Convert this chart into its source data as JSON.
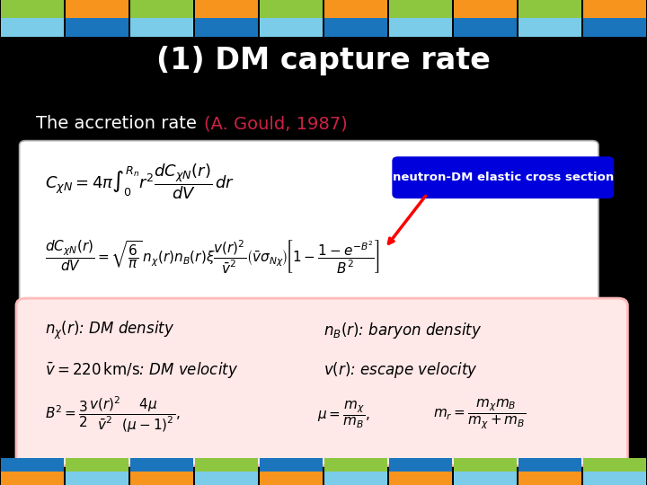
{
  "title": "(1) DM capture rate",
  "subtitle_plain": "The accretion rate ",
  "subtitle_colored": "(A. Gould, 1987)",
  "background_color": "#000000",
  "title_color": "#ffffff",
  "subtitle_plain_color": "#ffffff",
  "subtitle_colored_color": "#cc2244",
  "annotation_text": "neutron-DM elastic cross section",
  "annotation_bg": "#0000ee",
  "annotation_text_color": "#ffffff",
  "formula_box_color": "#ffffff",
  "legend_box_color": "#ffe8e8",
  "header_top_colors": [
    "#8dc63f",
    "#f7941d"
  ],
  "header_bot_colors": [
    "#7acce8",
    "#1b75bc"
  ],
  "footer_top_colors": [
    "#1b75bc",
    "#8dc63f"
  ],
  "footer_bot_colors": [
    "#f7941d",
    "#7acce8"
  ]
}
